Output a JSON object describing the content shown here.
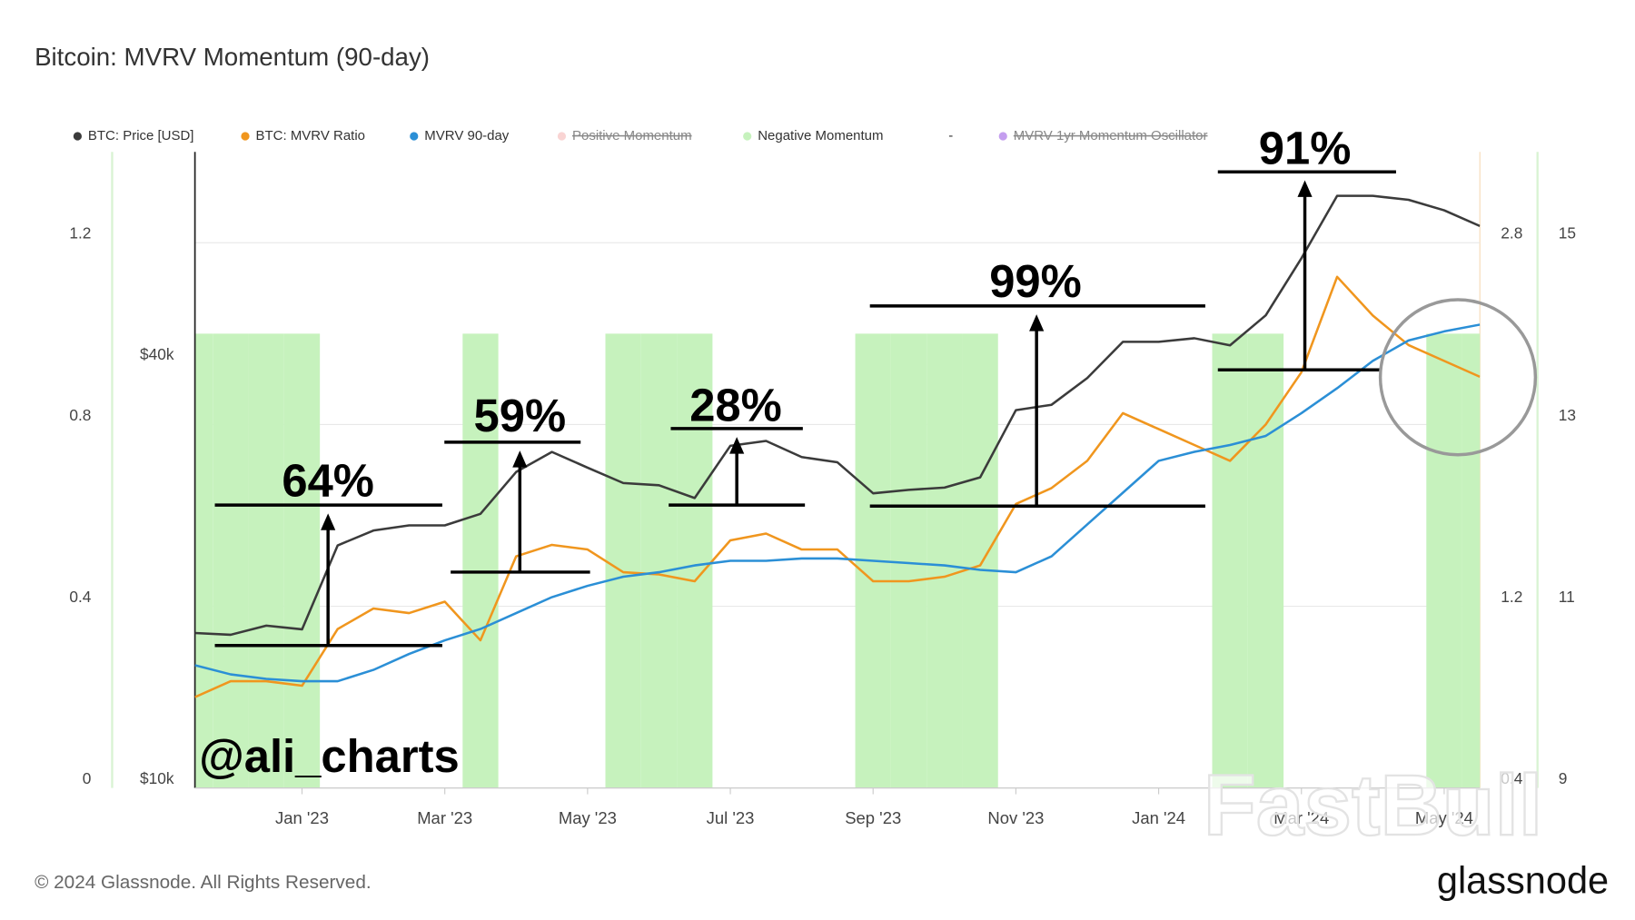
{
  "chart_data": {
    "type": "line",
    "title": "Bitcoin: MVRV Momentum (90-day)",
    "categories": [
      null,
      null,
      null,
      "Jan '23",
      null,
      null,
      null,
      "Mar '23",
      null,
      null,
      null,
      "May '23",
      null,
      null,
      null,
      "Jul '23",
      null,
      null,
      null,
      "Sep '23",
      null,
      null,
      null,
      "Nov '23",
      null,
      null,
      null,
      "Jan '24",
      null,
      null,
      null,
      "Mar '24",
      null,
      null,
      null,
      "May '24",
      null
    ],
    "axes": [
      {
        "side": "left",
        "lim": [
          0,
          1.4
        ],
        "ticks": [
          0,
          0.4,
          0.8,
          1.2
        ],
        "grid": true
      },
      {
        "side": "left",
        "lim": [
          10000,
          80000
        ],
        "log": true,
        "ticks": [
          {
            "value": 10000,
            "label": "$10k"
          },
          {
            "value": 40000,
            "label": "$40k"
          }
        ]
      },
      {
        "side": "right",
        "lim": [
          0.4,
          3.2
        ],
        "ticks": [
          0.4,
          1.2,
          2.8
        ]
      },
      {
        "side": "right",
        "lim": [
          9,
          16
        ],
        "ticks": [
          9,
          11,
          13,
          15
        ]
      }
    ],
    "series": [
      {
        "name": "BTC: Price [USD]",
        "color": "#3b3b3b",
        "axis": 1,
        "kind": "line",
        "values": [
          16600,
          16500,
          17000,
          16800,
          22100,
          23200,
          23600,
          23600,
          24500,
          28100,
          30000,
          28500,
          27100,
          26900,
          25800,
          30600,
          31100,
          29500,
          29000,
          26200,
          26500,
          26700,
          27600,
          34400,
          35000,
          38200,
          43000,
          43000,
          43500,
          42500,
          46900,
          56500,
          69300,
          69300,
          68400,
          66100,
          62800
        ]
      },
      {
        "name": "BTC: MVRV Ratio",
        "color": "#f0961e",
        "axis": 2,
        "kind": "line",
        "values": [
          0.8,
          0.87,
          0.87,
          0.85,
          1.1,
          1.19,
          1.17,
          1.22,
          1.05,
          1.42,
          1.47,
          1.45,
          1.35,
          1.34,
          1.31,
          1.49,
          1.52,
          1.45,
          1.45,
          1.31,
          1.31,
          1.33,
          1.38,
          1.65,
          1.72,
          1.84,
          2.05,
          1.98,
          1.91,
          1.84,
          2.0,
          2.23,
          2.65,
          2.48,
          2.35,
          2.28,
          2.21
        ]
      },
      {
        "name": "MVRV 90-day",
        "color": "#2b8fd6",
        "axis": 2,
        "kind": "line",
        "values": [
          0.94,
          0.9,
          0.88,
          0.87,
          0.87,
          0.92,
          0.99,
          1.05,
          1.1,
          1.17,
          1.24,
          1.29,
          1.33,
          1.35,
          1.38,
          1.4,
          1.4,
          1.41,
          1.41,
          1.4,
          1.39,
          1.38,
          1.36,
          1.35,
          1.42,
          1.56,
          1.7,
          1.84,
          1.88,
          1.91,
          1.95,
          2.05,
          2.16,
          2.28,
          2.37,
          2.41,
          2.44
        ]
      },
      {
        "name": "Positive Momentum",
        "color": "#f4a9a8",
        "hidden": true
      },
      {
        "name": "Negative Momentum",
        "color": "#c6f2bd",
        "axis": 0,
        "kind": "bar",
        "values": [
          1,
          1,
          1,
          1,
          null,
          null,
          null,
          null,
          1,
          null,
          null,
          null,
          1,
          1,
          1,
          null,
          null,
          null,
          null,
          1,
          1,
          1,
          1,
          null,
          null,
          null,
          null,
          null,
          null,
          1,
          1,
          null,
          null,
          null,
          null,
          1,
          1
        ]
      },
      {
        "name": "-"
      },
      {
        "name": "MVRV 1yr Momentum Oscillator",
        "color": "#8a3ee0",
        "hidden": true
      }
    ],
    "annotations": [
      "64%",
      "59%",
      "28%",
      "99%",
      "91%"
    ],
    "watermarks": [
      "@ali_charts",
      "FastBull"
    ],
    "logo": "glassnode",
    "copyright": "© 2024 Glassnode. All Rights Reserved."
  }
}
